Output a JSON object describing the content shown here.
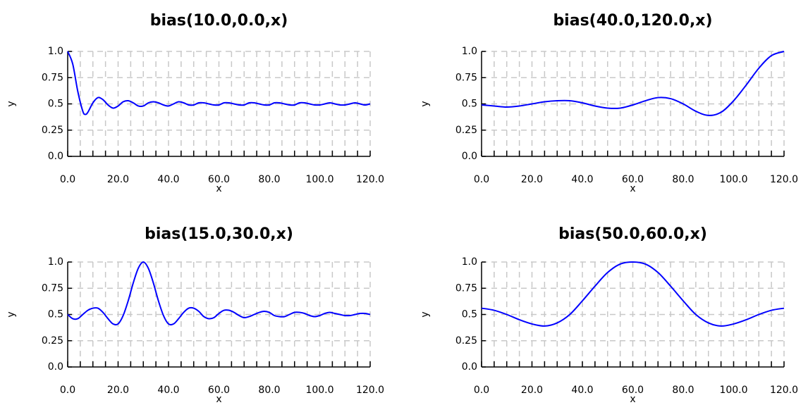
{
  "chart_data": [
    {
      "type": "line",
      "title": "bias(10.0,0.0,x)",
      "xlabel": "x",
      "ylabel": "y",
      "xlim": [
        0,
        120
      ],
      "ylim": [
        0,
        1
      ],
      "grid": true,
      "x_ticks": [
        "0.0",
        "20.0",
        "40.0",
        "60.0",
        "80.0",
        "100.0",
        "120.0"
      ],
      "y_ticks": [
        "0.0",
        "0.25",
        "0.5",
        "0.75",
        "1.0"
      ],
      "line_color": "#0000ff",
      "series": [
        {
          "x": [
            0,
            2,
            4,
            6,
            7,
            8,
            10,
            12,
            14,
            16,
            18,
            20,
            22,
            24,
            26,
            28,
            30,
            32,
            34,
            36,
            38,
            40,
            42,
            44,
            46,
            48,
            50,
            52,
            54,
            56,
            58,
            60,
            62,
            64,
            66,
            68,
            70,
            72,
            74,
            76,
            78,
            80,
            82,
            84,
            86,
            88,
            90,
            92,
            94,
            96,
            98,
            100,
            102,
            104,
            106,
            108,
            110,
            112,
            114,
            116,
            118,
            120
          ],
          "values": [
            1.0,
            0.88,
            0.62,
            0.43,
            0.4,
            0.42,
            0.51,
            0.56,
            0.54,
            0.49,
            0.46,
            0.48,
            0.52,
            0.53,
            0.51,
            0.48,
            0.48,
            0.51,
            0.52,
            0.51,
            0.49,
            0.48,
            0.5,
            0.52,
            0.51,
            0.49,
            0.49,
            0.51,
            0.51,
            0.5,
            0.49,
            0.49,
            0.51,
            0.51,
            0.5,
            0.49,
            0.49,
            0.51,
            0.51,
            0.5,
            0.49,
            0.49,
            0.51,
            0.51,
            0.5,
            0.49,
            0.49,
            0.51,
            0.51,
            0.5,
            0.49,
            0.49,
            0.5,
            0.51,
            0.5,
            0.49,
            0.49,
            0.5,
            0.51,
            0.5,
            0.49,
            0.5
          ]
        }
      ]
    },
    {
      "type": "line",
      "title": "bias(40.0,120.0,x)",
      "xlabel": "x",
      "ylabel": "y",
      "xlim": [
        0,
        120
      ],
      "ylim": [
        0,
        1
      ],
      "grid": true,
      "x_ticks": [
        "0.0",
        "20.0",
        "40.0",
        "60.0",
        "80.0",
        "100.0",
        "120.0"
      ],
      "y_ticks": [
        "0.0",
        "0.25",
        "0.5",
        "0.75",
        "1.0"
      ],
      "line_color": "#0000ff",
      "series": [
        {
          "x": [
            0,
            5,
            10,
            15,
            20,
            25,
            30,
            35,
            40,
            45,
            50,
            55,
            60,
            65,
            70,
            75,
            80,
            85,
            90,
            95,
            100,
            105,
            110,
            115,
            120
          ],
          "values": [
            0.49,
            0.48,
            0.47,
            0.48,
            0.5,
            0.52,
            0.53,
            0.53,
            0.51,
            0.48,
            0.46,
            0.46,
            0.49,
            0.53,
            0.56,
            0.55,
            0.5,
            0.43,
            0.39,
            0.42,
            0.53,
            0.68,
            0.84,
            0.96,
            1.0
          ]
        }
      ]
    },
    {
      "type": "line",
      "title": "bias(15.0,30.0,x)",
      "xlabel": "x",
      "ylabel": "y",
      "xlim": [
        0,
        120
      ],
      "ylim": [
        0,
        1
      ],
      "grid": true,
      "x_ticks": [
        "0.0",
        "20.0",
        "40.0",
        "60.0",
        "80.0",
        "100.0",
        "120.0"
      ],
      "y_ticks": [
        "0.0",
        "0.25",
        "0.5",
        "0.75",
        "1.0"
      ],
      "line_color": "#0000ff",
      "series": [
        {
          "x": [
            0,
            2,
            4,
            6,
            8,
            10,
            12,
            14,
            16,
            18,
            20,
            22,
            24,
            26,
            28,
            30,
            32,
            34,
            36,
            38,
            40,
            42,
            44,
            46,
            48,
            50,
            52,
            54,
            56,
            58,
            60,
            62,
            64,
            66,
            68,
            70,
            72,
            74,
            76,
            78,
            80,
            82,
            84,
            86,
            88,
            90,
            92,
            94,
            96,
            98,
            100,
            102,
            104,
            106,
            108,
            110,
            112,
            114,
            116,
            118,
            120
          ],
          "values": [
            0.5,
            0.46,
            0.46,
            0.5,
            0.54,
            0.56,
            0.56,
            0.52,
            0.46,
            0.41,
            0.41,
            0.49,
            0.63,
            0.8,
            0.94,
            1.0,
            0.94,
            0.8,
            0.63,
            0.49,
            0.41,
            0.41,
            0.46,
            0.52,
            0.56,
            0.56,
            0.53,
            0.48,
            0.46,
            0.47,
            0.51,
            0.54,
            0.54,
            0.52,
            0.49,
            0.47,
            0.48,
            0.5,
            0.52,
            0.53,
            0.52,
            0.49,
            0.48,
            0.48,
            0.5,
            0.52,
            0.52,
            0.51,
            0.49,
            0.48,
            0.49,
            0.51,
            0.52,
            0.51,
            0.5,
            0.49,
            0.49,
            0.5,
            0.51,
            0.51,
            0.5
          ]
        }
      ]
    },
    {
      "type": "line",
      "title": "bias(50.0,60.0,x)",
      "xlabel": "x",
      "ylabel": "y",
      "xlim": [
        0,
        120
      ],
      "ylim": [
        0,
        1
      ],
      "grid": true,
      "x_ticks": [
        "0.0",
        "20.0",
        "40.0",
        "60.0",
        "80.0",
        "100.0",
        "120.0"
      ],
      "y_ticks": [
        "0.0",
        "0.25",
        "0.5",
        "0.75",
        "1.0"
      ],
      "line_color": "#0000ff",
      "series": [
        {
          "x": [
            0,
            5,
            10,
            15,
            20,
            25,
            30,
            35,
            40,
            45,
            50,
            55,
            60,
            65,
            70,
            75,
            80,
            85,
            90,
            95,
            100,
            105,
            110,
            115,
            120
          ],
          "values": [
            0.56,
            0.54,
            0.5,
            0.45,
            0.41,
            0.39,
            0.42,
            0.5,
            0.63,
            0.77,
            0.9,
            0.98,
            1.0,
            0.98,
            0.9,
            0.77,
            0.63,
            0.5,
            0.42,
            0.39,
            0.41,
            0.45,
            0.5,
            0.54,
            0.56
          ]
        }
      ]
    }
  ]
}
